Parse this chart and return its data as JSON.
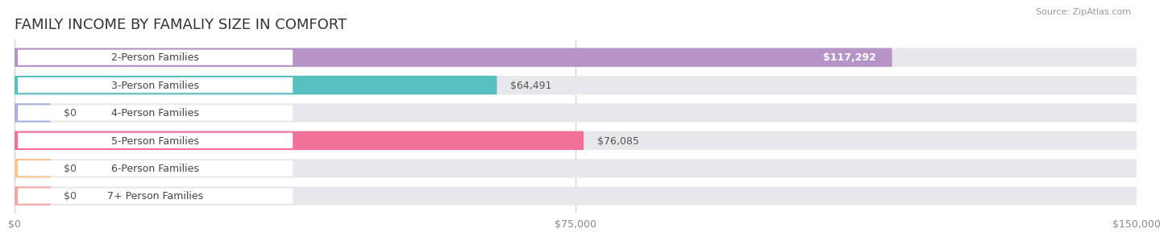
{
  "title": "FAMILY INCOME BY FAMALIY SIZE IN COMFORT",
  "source": "Source: ZipAtlas.com",
  "categories": [
    "2-Person Families",
    "3-Person Families",
    "4-Person Families",
    "5-Person Families",
    "6-Person Families",
    "7+ Person Families"
  ],
  "values": [
    117292,
    64491,
    0,
    76085,
    0,
    0
  ],
  "bar_colors": [
    "#b794c8",
    "#57bfc0",
    "#aab0e0",
    "#f07098",
    "#f5c490",
    "#f0a8a0"
  ],
  "xlim": [
    0,
    150000
  ],
  "xticklabels": [
    "$0",
    "$75,000",
    "$150,000"
  ],
  "xtick_vals": [
    0,
    75000,
    150000
  ],
  "bar_height": 0.68,
  "bg_bar_color": "#e8e8ec",
  "value_labels": [
    "$117,292",
    "$64,491",
    "$0",
    "$76,085",
    "$0",
    "$0"
  ],
  "title_fontsize": 13,
  "label_fontsize": 9,
  "value_fontsize": 9,
  "tick_fontsize": 9,
  "label_pill_color": "#ffffff",
  "value_inside_color": "#ffffff",
  "value_outside_color": "#555555"
}
